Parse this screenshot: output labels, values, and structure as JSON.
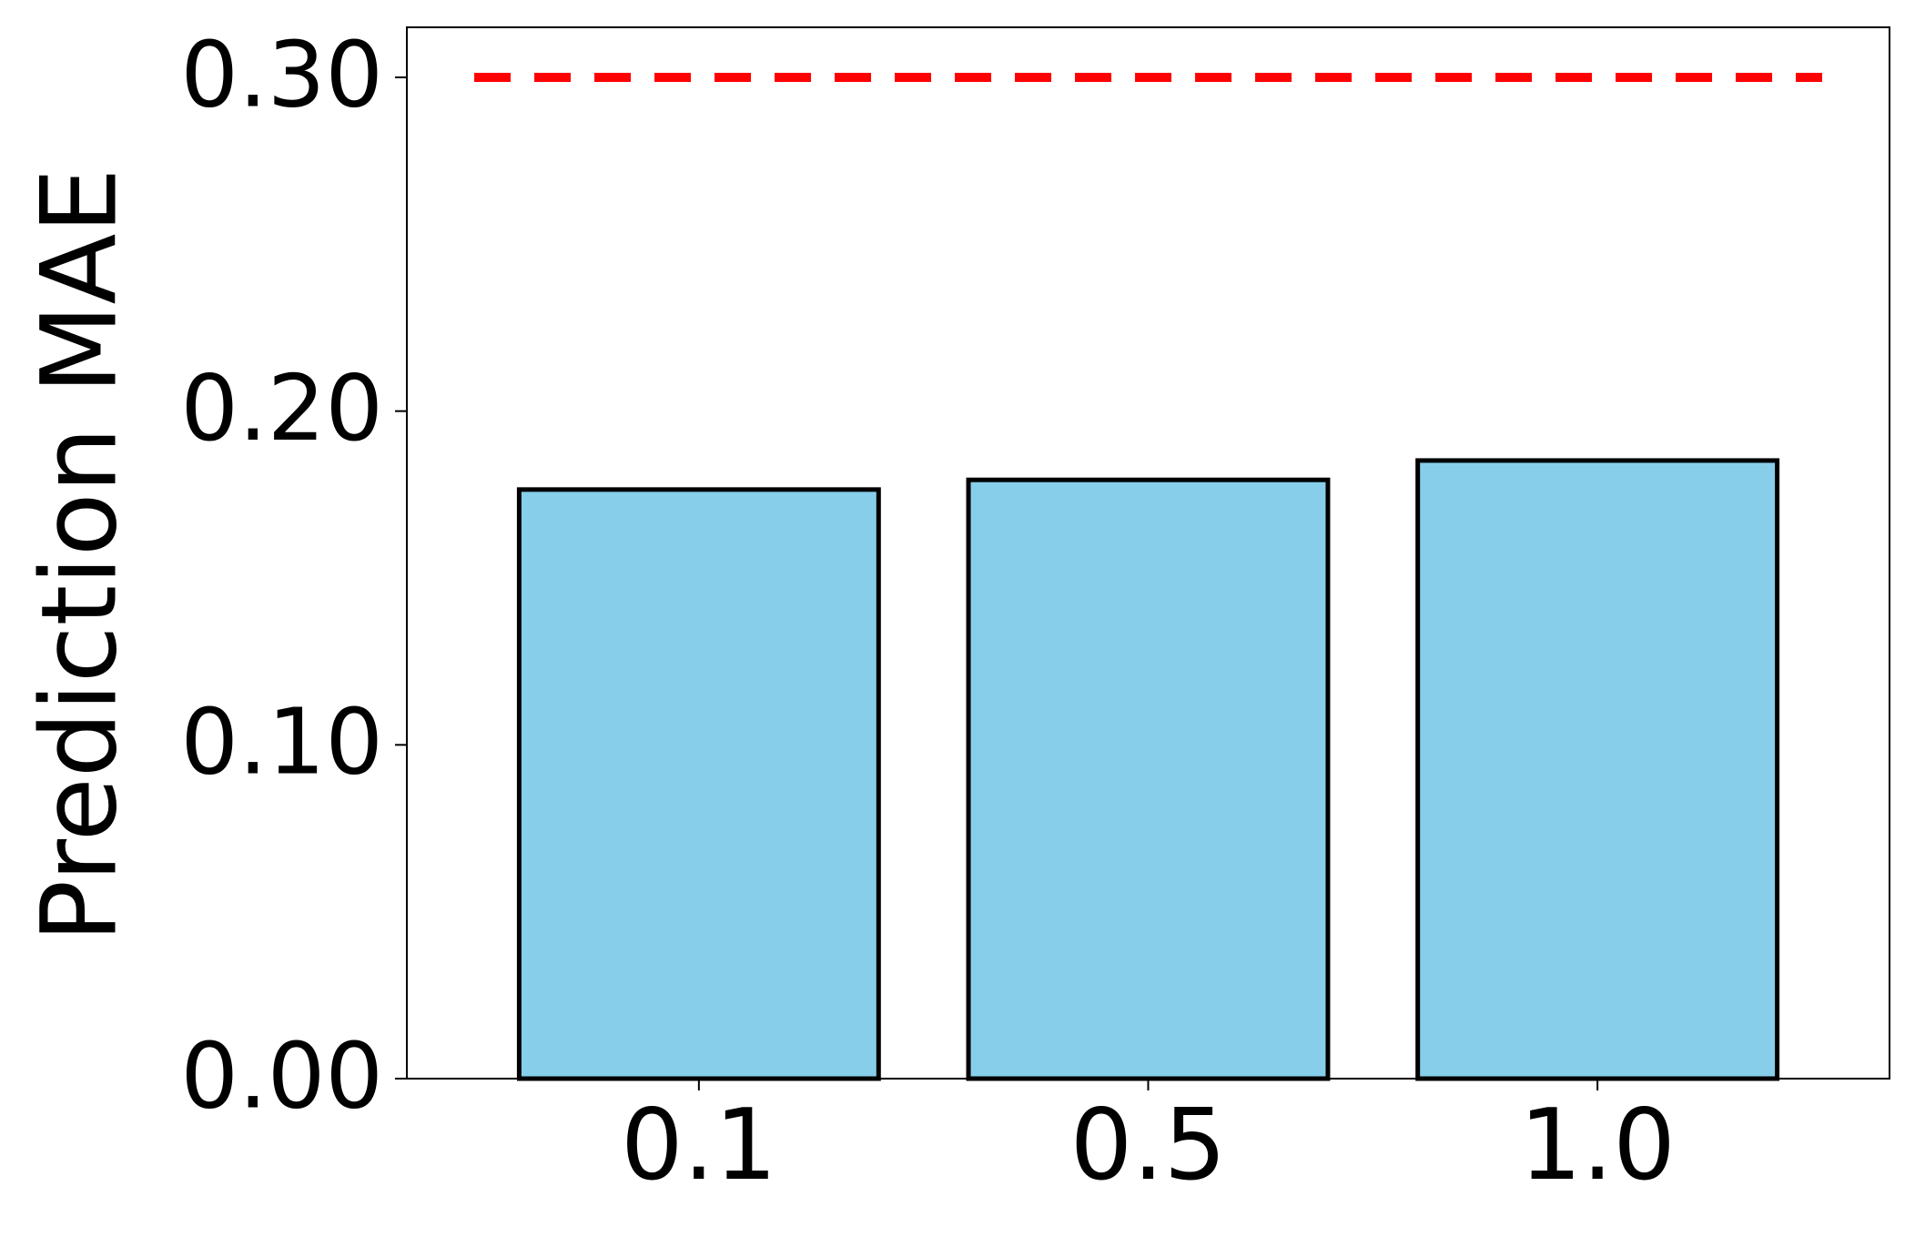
{
  "chart_data": {
    "type": "bar",
    "y_label": "Prediction MAE",
    "categories": [
      "0.1",
      "0.5",
      "1.0"
    ],
    "values": [
      0.1765,
      0.1794,
      0.1852
    ],
    "color": "#87ceeb",
    "edge_color": "#000000",
    "ylim": [
      0,
      0.315
    ],
    "yticks": [
      {
        "value": 0,
        "label": "0.00"
      },
      {
        "value": 0.1,
        "label": "0.10"
      },
      {
        "value": 0.2,
        "label": "0.20"
      },
      {
        "value": 0.3,
        "label": "0.30"
      }
    ],
    "reference_line": {
      "value": 0.3,
      "color": "#ff0000",
      "style": "dashed"
    },
    "grid": false
  }
}
